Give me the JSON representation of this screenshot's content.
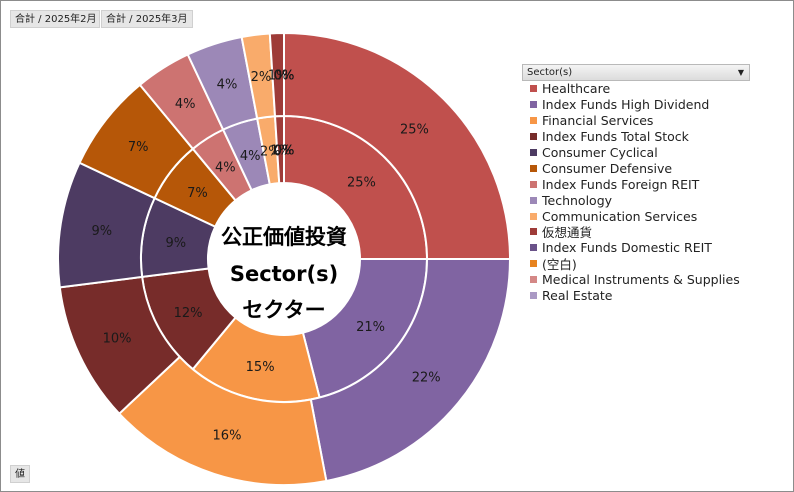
{
  "field_buttons": {
    "feb": "合計 / 2025年2月",
    "mar": "合計 / 2025年3月"
  },
  "values_button": "値",
  "center_text": {
    "line1": "公正価値投資",
    "line2": "Sector(s)",
    "line3": "セクター"
  },
  "legend": {
    "title": "Sector(s)",
    "dropdown_icon": "dropdown-arrow-icon"
  },
  "chart_data": {
    "type": "doughnut",
    "rings": [
      {
        "name": "合計 / 2025年2月",
        "ring": "inner"
      },
      {
        "name": "合計 / 2025年3月",
        "ring": "outer"
      }
    ],
    "categories": [
      {
        "name": "Healthcare",
        "color": "#c0504d"
      },
      {
        "name": "Index Funds High Dividend",
        "color": "#8064a2"
      },
      {
        "name": "Financial Services",
        "color": "#f79646"
      },
      {
        "name": "Index Funds Total Stock",
        "color": "#772c2a"
      },
      {
        "name": "Consumer Cyclical",
        "color": "#4d3b62"
      },
      {
        "name": "Consumer Defensive",
        "color": "#b65708"
      },
      {
        "name": "Index Funds Foreign REIT",
        "color": "#cd7371"
      },
      {
        "name": "Technology",
        "color": "#9c88b7"
      },
      {
        "name": "Communication Services",
        "color": "#f9ab6b"
      },
      {
        "name": "仮想通貨",
        "color": "#9e3b38"
      },
      {
        "name": "Index Funds Domestic REIT",
        "color": "#6a5289"
      },
      {
        "name": "(空白)",
        "color": "#e7831f"
      },
      {
        "name": "Medical Instruments & Supplies",
        "color": "#d48886"
      },
      {
        "name": "Real Estate",
        "color": "#aa99c4"
      }
    ],
    "inner_values": [
      25,
      21,
      15,
      12,
      9,
      7,
      4,
      4,
      2,
      1,
      0,
      0,
      0,
      0
    ],
    "outer_values": [
      25,
      22,
      16,
      10,
      9,
      7,
      4,
      4,
      2,
      1,
      0,
      0,
      0,
      0
    ],
    "inner_labels": [
      "25%",
      "21%",
      "15%",
      "12%",
      "9%",
      "7%",
      "4%",
      "4%",
      "2%",
      "1%",
      "0%",
      "0%",
      "0%",
      "0%"
    ],
    "outer_labels": [
      "25%",
      "22%",
      "16%",
      "10%",
      "9%",
      "7%",
      "4%",
      "4%",
      "2%",
      "1%",
      "0%",
      "0%",
      "0%",
      "0%"
    ],
    "legend_position": "right"
  }
}
